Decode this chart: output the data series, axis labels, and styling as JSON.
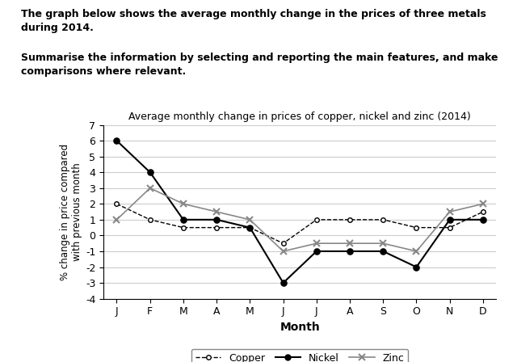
{
  "title": "Average monthly change in prices of copper, nickel and zinc (2014)",
  "xlabel": "Month",
  "ylabel": "% change in price compared\nwith previous month",
  "months": [
    "J",
    "F",
    "M",
    "A",
    "M",
    "J",
    "J",
    "A",
    "S",
    "O",
    "N",
    "D"
  ],
  "copper": [
    2.0,
    1.0,
    0.5,
    0.5,
    0.5,
    -0.5,
    1.0,
    1.0,
    1.0,
    0.5,
    0.5,
    1.5
  ],
  "nickel": [
    6.0,
    4.0,
    1.0,
    1.0,
    0.5,
    -3.0,
    -1.0,
    -1.0,
    -1.0,
    -2.0,
    1.0,
    1.0
  ],
  "zinc": [
    1.0,
    3.0,
    2.0,
    1.5,
    1.0,
    -1.0,
    -0.5,
    -0.5,
    -0.5,
    -1.0,
    1.5,
    2.0
  ],
  "ylim": [
    -4,
    7
  ],
  "yticks": [
    -4,
    -3,
    -2,
    -1,
    0,
    1,
    2,
    3,
    4,
    5,
    6,
    7
  ],
  "header_text1": "The graph below shows the average monthly change in the prices of three metals\nduring 2014.",
  "header_text2": "Summarise the information by selecting and reporting the main features, and make\ncomparisons where relevant.",
  "copper_color": "#000000",
  "nickel_color": "#000000",
  "zinc_color": "#888888",
  "grid_color": "#cccccc"
}
